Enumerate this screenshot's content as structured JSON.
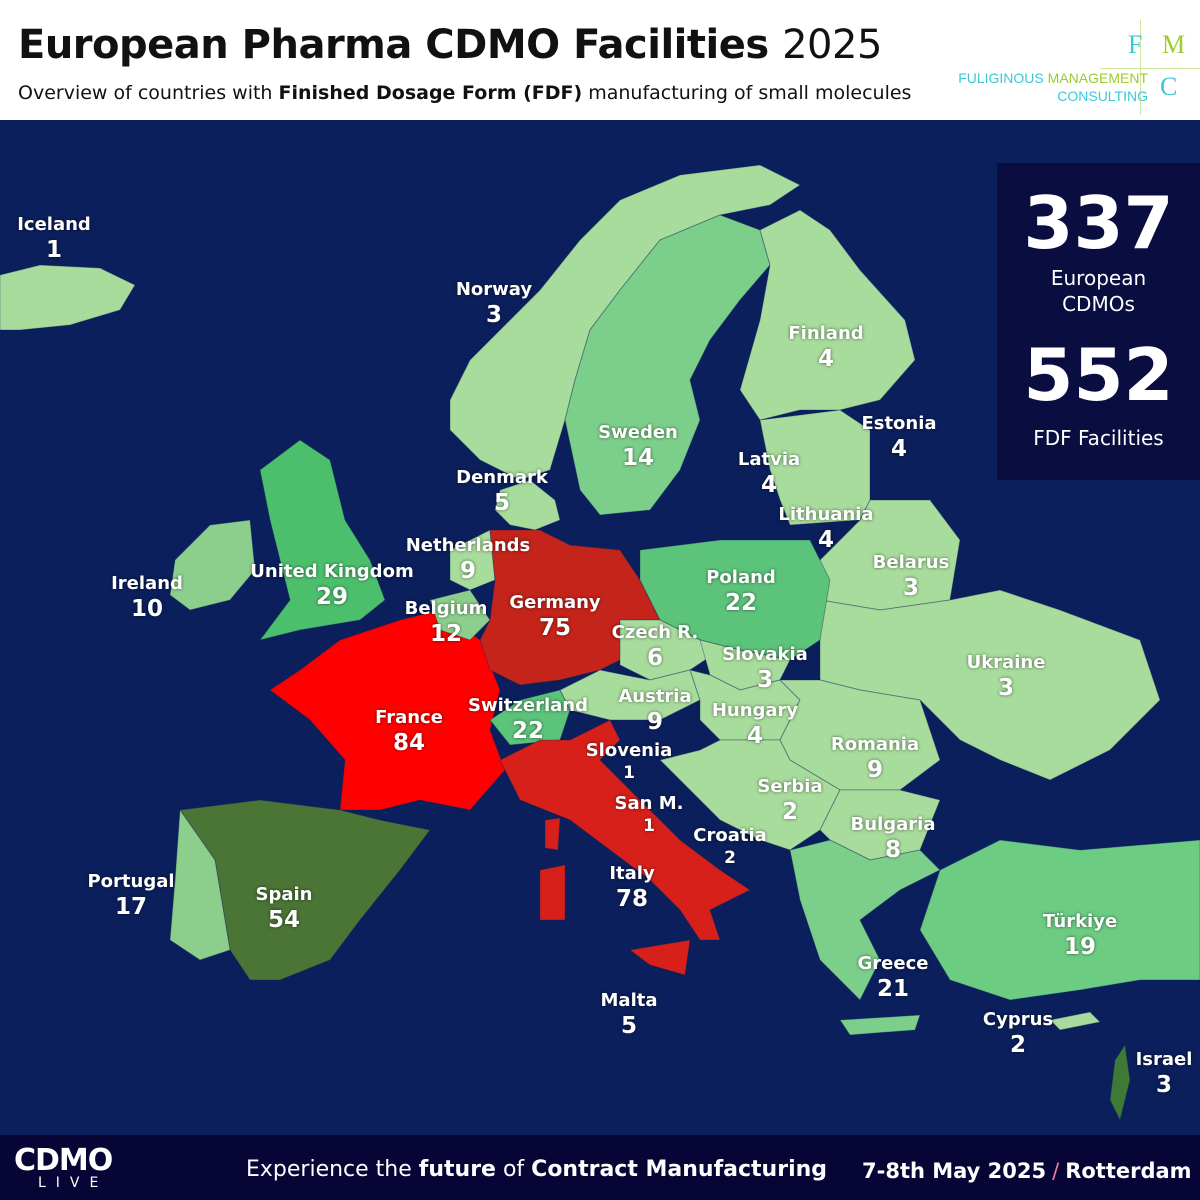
{
  "header": {
    "title": "European Pharma CDMO Facilities",
    "year": "2025",
    "subtitle_pre": "Overview of countries with ",
    "subtitle_bold": "Finished Dosage Form (FDF)",
    "subtitle_post": " manufacturing of small molecules"
  },
  "logo": {
    "letters": [
      "F",
      "M",
      "C"
    ],
    "line1a": "FULIGINOUS ",
    "line1b": "MANAGEMENT",
    "line2": "CONSULTING"
  },
  "stats": {
    "cdmos": "337",
    "cdmos_label": "European CDMOs",
    "facilities": "552",
    "facilities_label": "FDF Facilities"
  },
  "countries": [
    {
      "name": "Iceland",
      "value": "1"
    },
    {
      "name": "Norway",
      "value": "3"
    },
    {
      "name": "Finland",
      "value": "4"
    },
    {
      "name": "Sweden",
      "value": "14"
    },
    {
      "name": "Estonia",
      "value": "4"
    },
    {
      "name": "Denmark",
      "value": "5"
    },
    {
      "name": "Latvia",
      "value": "4"
    },
    {
      "name": "Lithuania",
      "value": "4"
    },
    {
      "name": "Netherlands",
      "value": "9"
    },
    {
      "name": "Belarus",
      "value": "3"
    },
    {
      "name": "Ireland",
      "value": "10"
    },
    {
      "name": "United Kingdom",
      "value": "29"
    },
    {
      "name": "Poland",
      "value": "22"
    },
    {
      "name": "Germany",
      "value": "75"
    },
    {
      "name": "Belgium",
      "value": "12"
    },
    {
      "name": "Czech R.",
      "value": "6"
    },
    {
      "name": "Slovakia",
      "value": "3"
    },
    {
      "name": "Ukraine",
      "value": "3"
    },
    {
      "name": "Austria",
      "value": "9"
    },
    {
      "name": "Switzerland",
      "value": "22"
    },
    {
      "name": "Hungary",
      "value": "4"
    },
    {
      "name": "France",
      "value": "84"
    },
    {
      "name": "Slovenia",
      "value": "1"
    },
    {
      "name": "Romania",
      "value": "9"
    },
    {
      "name": "Serbia",
      "value": "2"
    },
    {
      "name": "San M.",
      "value": "1"
    },
    {
      "name": "Croatia",
      "value": "2"
    },
    {
      "name": "Bulgaria",
      "value": "8"
    },
    {
      "name": "Italy",
      "value": "78"
    },
    {
      "name": "Portugal",
      "value": "17"
    },
    {
      "name": "Spain",
      "value": "54"
    },
    {
      "name": "Türkiye",
      "value": "19"
    },
    {
      "name": "Greece",
      "value": "21"
    },
    {
      "name": "Malta",
      "value": "5"
    },
    {
      "name": "Cyprus",
      "value": "2"
    },
    {
      "name": "Israel",
      "value": "3"
    }
  ],
  "colors": {
    "ocean": "#0b1f5c",
    "low": "#a8dc9c",
    "mid": "#7ccf8a",
    "high": "#4cbf6c",
    "spain": "#4a7535",
    "france": "#ff0000",
    "germany": "#c4241a",
    "italy": "#d8201a"
  },
  "footer": {
    "brand": "CDMO",
    "brand_sub": "LIVE",
    "tag_pre": "Experience the ",
    "tag_b1": "future",
    "tag_mid": " of ",
    "tag_b2": "Contract Manufacturing",
    "date": "7-8th May 2025",
    "slash": "/",
    "city": "Rotterdam"
  }
}
